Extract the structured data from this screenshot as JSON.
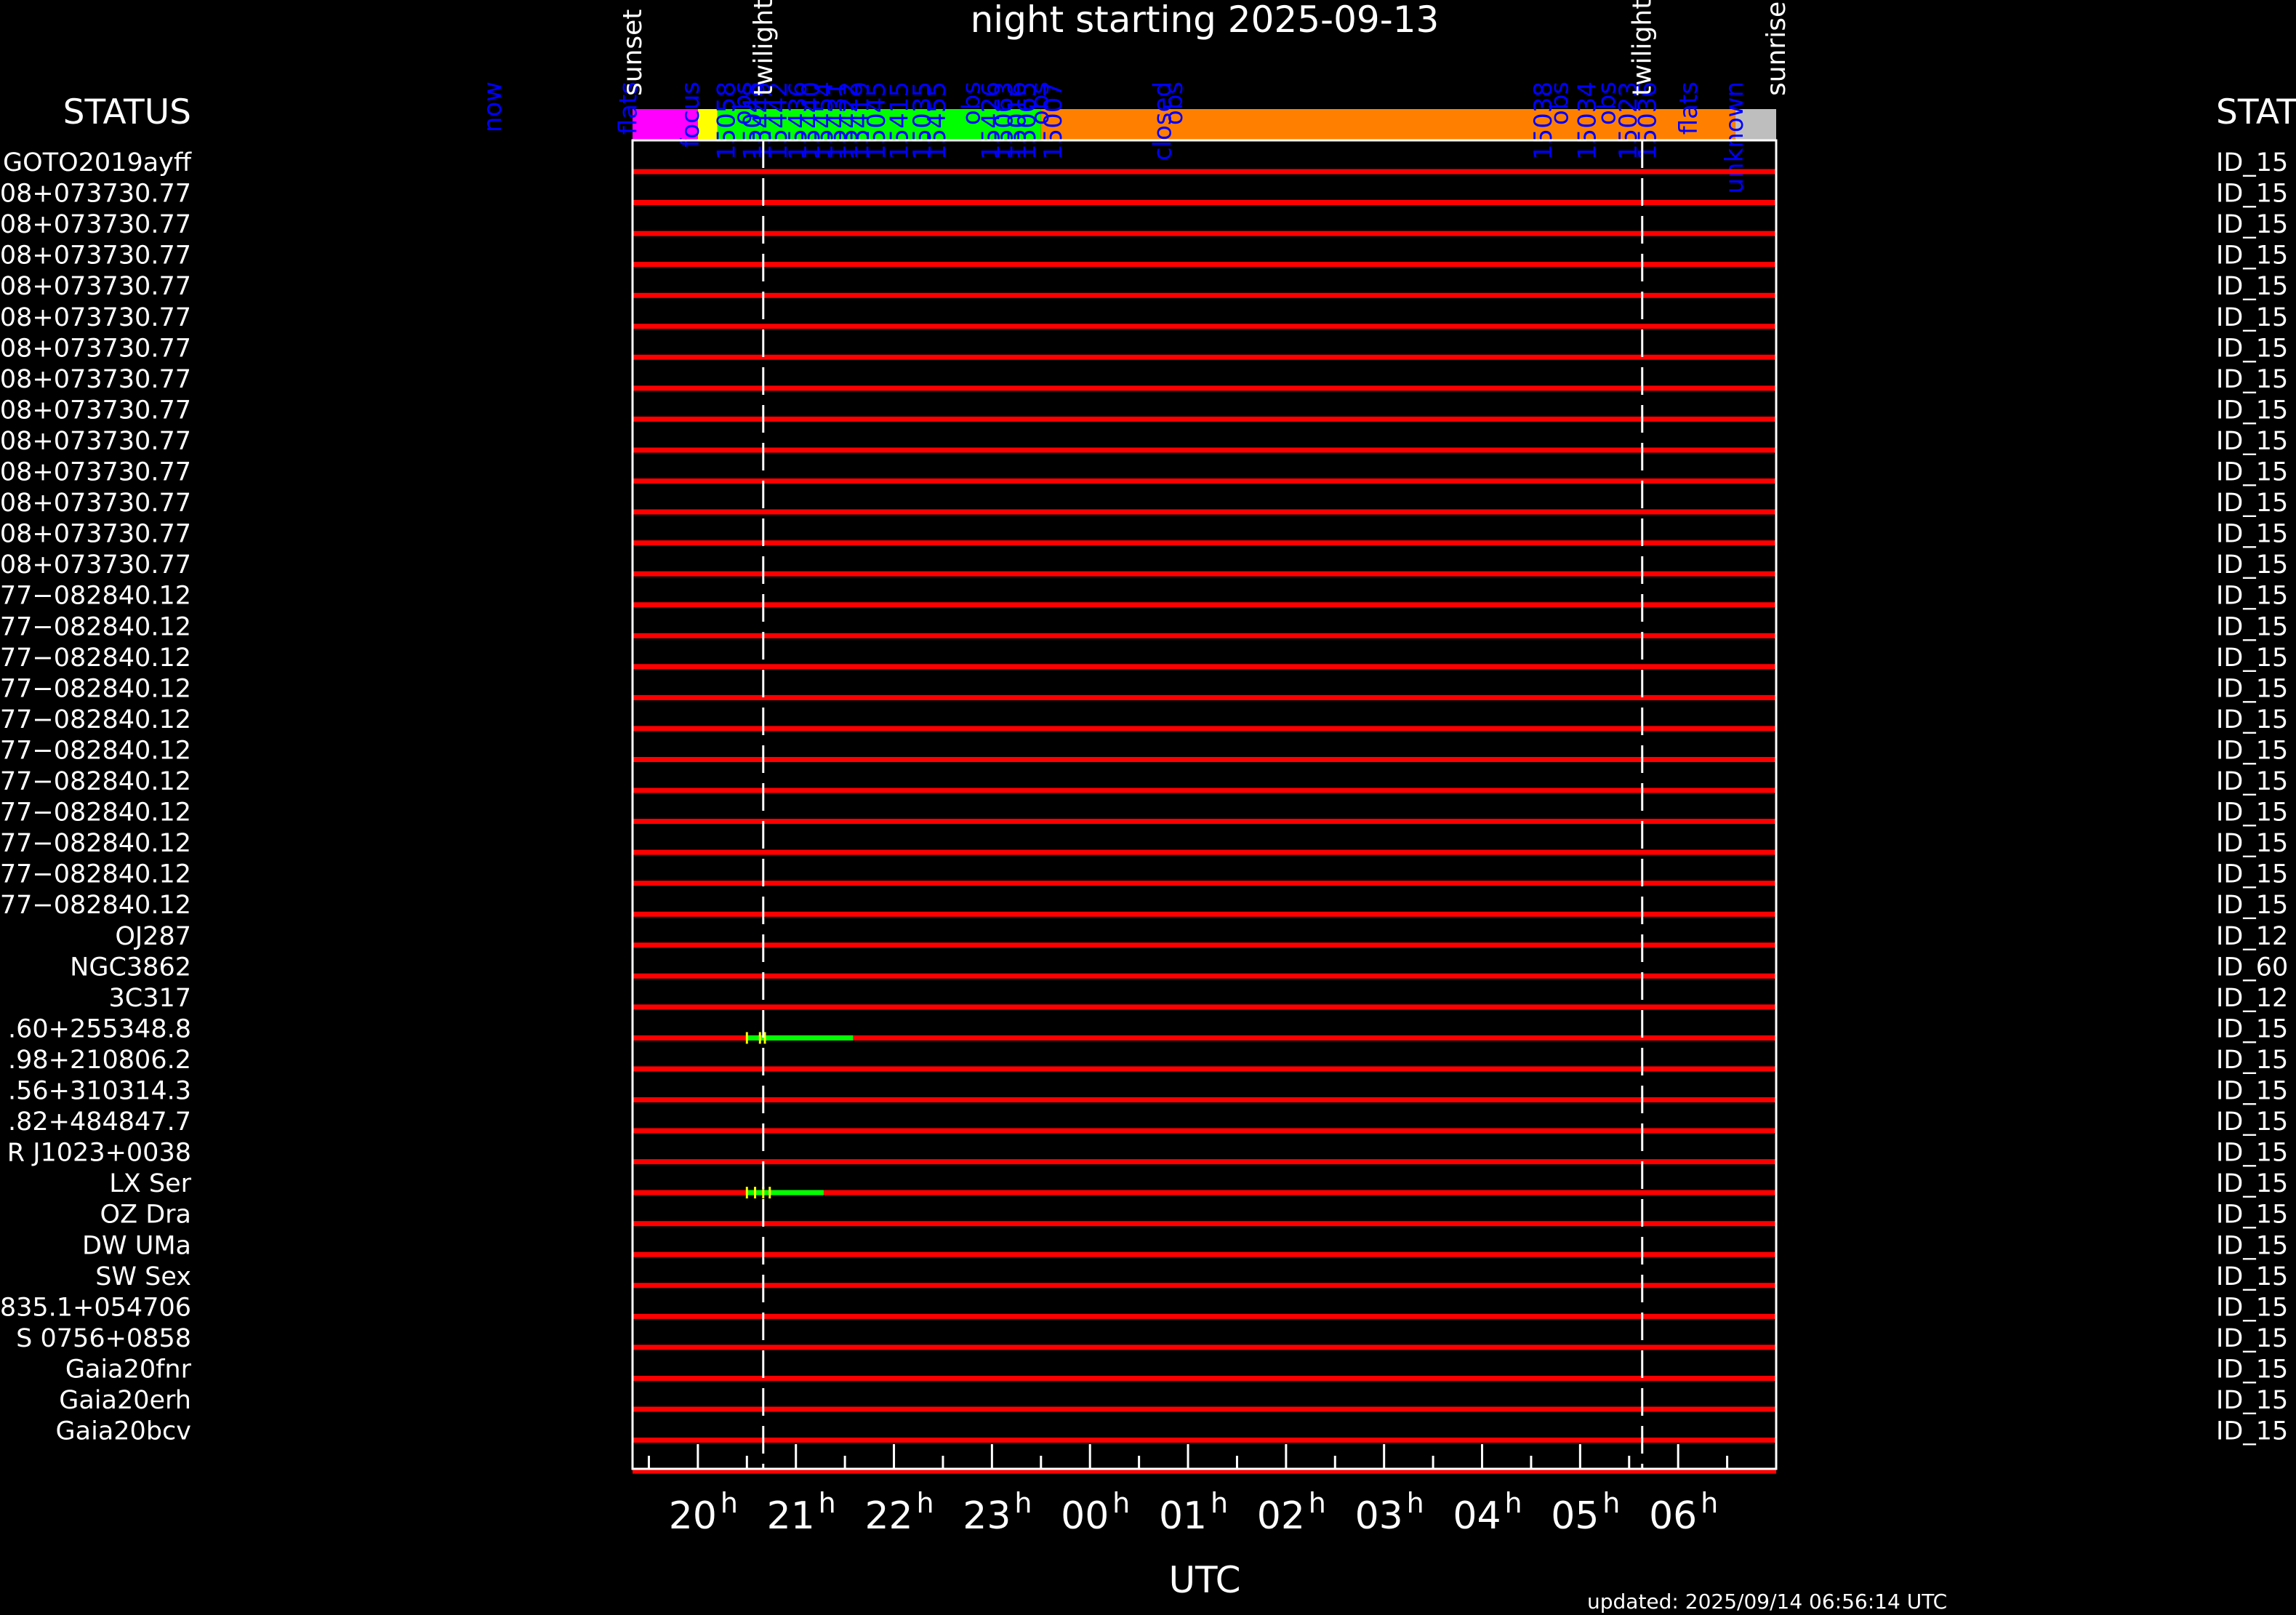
{
  "chart_data": {
    "type": "timeline",
    "title": "night starting 2025-09-13",
    "xlabel": "UTC",
    "updated": "updated: 2025/09/14 06:56:14 UTC",
    "left_header": "STATUS",
    "right_header": "STAT",
    "x_range_hours_utc": [
      "19:20",
      "07:00"
    ],
    "x_ticks": [
      {
        "hour": "20",
        "suffix": "h"
      },
      {
        "hour": "21",
        "suffix": "h"
      },
      {
        "hour": "22",
        "suffix": "h"
      },
      {
        "hour": "23",
        "suffix": "h"
      },
      {
        "hour": "00",
        "suffix": "h"
      },
      {
        "hour": "01",
        "suffix": "h"
      },
      {
        "hour": "02",
        "suffix": "h"
      },
      {
        "hour": "03",
        "suffix": "h"
      },
      {
        "hour": "04",
        "suffix": "h"
      },
      {
        "hour": "05",
        "suffix": "h"
      },
      {
        "hour": "06",
        "suffix": "h"
      }
    ],
    "sky_events": [
      {
        "label": "sunset",
        "time": "19:20"
      },
      {
        "label": "twilight",
        "time": "20:40"
      },
      {
        "label": "twilight",
        "time": "05:38"
      },
      {
        "label": "sunrise",
        "time": "07:00"
      }
    ],
    "dashed_lines": [
      "20:40",
      "05:38"
    ],
    "status_bar": [
      {
        "from": "19:20",
        "to": "20:00",
        "color": "#ff00ff"
      },
      {
        "from": "20:00",
        "to": "20:12",
        "color": "#ffff00"
      },
      {
        "from": "20:12",
        "to": "20:40",
        "color": "#00ff00"
      },
      {
        "from": "20:40",
        "to": "23:30",
        "color": "#00ff00"
      },
      {
        "from": "23:30",
        "to": "06:35",
        "color": "#ff8000"
      },
      {
        "from": "06:35",
        "to": "07:00",
        "color": "#bebebe"
      }
    ],
    "status_labels": [
      {
        "text": "now",
        "time": "17:55"
      },
      {
        "text": "flats",
        "time": "19:18"
      },
      {
        "text": "focus",
        "time": "19:56"
      },
      {
        "text": "15058",
        "time": "20:18"
      },
      {
        "text": "obs",
        "time": "20:28"
      },
      {
        "text": "15048",
        "time": "20:34"
      },
      {
        "text": "15449",
        "time": "20:40"
      },
      {
        "text": "15442",
        "time": "20:50"
      },
      {
        "text": "15436",
        "time": "21:02"
      },
      {
        "text": "15440",
        "time": "21:10"
      },
      {
        "text": "15454",
        "time": "21:18"
      },
      {
        "text": "15431",
        "time": "21:26"
      },
      {
        "text": "15422",
        "time": "21:33"
      },
      {
        "text": "15419",
        "time": "21:40"
      },
      {
        "text": "15045",
        "time": "21:50"
      },
      {
        "text": "15415",
        "time": "22:04"
      },
      {
        "text": "15035",
        "time": "22:18"
      },
      {
        "text": "15455",
        "time": "22:27"
      },
      {
        "text": "obs",
        "time": "22:48"
      },
      {
        "text": "15426",
        "time": "23:00"
      },
      {
        "text": "15063",
        "time": "23:08"
      },
      {
        "text": "15016",
        "time": "23:16"
      },
      {
        "text": "15065",
        "time": "23:22"
      },
      {
        "text": "obs",
        "time": "23:30"
      },
      {
        "text": "15007",
        "time": "23:38"
      },
      {
        "text": "closed",
        "time": "00:45"
      },
      {
        "text": "obs",
        "time": "00:52"
      },
      {
        "text": "15038",
        "time": "04:38"
      },
      {
        "text": "obs",
        "time": "04:48"
      },
      {
        "text": "15034",
        "time": "05:05"
      },
      {
        "text": "obs",
        "time": "05:17"
      },
      {
        "text": "15023",
        "time": "05:30"
      },
      {
        "text": "15036",
        "time": "05:42"
      },
      {
        "text": "flats",
        "time": "06:07"
      },
      {
        "text": "unknown",
        "time": "06:35"
      }
    ],
    "rows": [
      {
        "target": "GOTO2019ayff",
        "status": "ID_15"
      },
      {
        "target": "08+073730.77",
        "status": "ID_15"
      },
      {
        "target": "08+073730.77",
        "status": "ID_15"
      },
      {
        "target": "08+073730.77",
        "status": "ID_15"
      },
      {
        "target": "08+073730.77",
        "status": "ID_15"
      },
      {
        "target": "08+073730.77",
        "status": "ID_15"
      },
      {
        "target": "08+073730.77",
        "status": "ID_15"
      },
      {
        "target": "08+073730.77",
        "status": "ID_15"
      },
      {
        "target": "08+073730.77",
        "status": "ID_15"
      },
      {
        "target": "08+073730.77",
        "status": "ID_15"
      },
      {
        "target": "08+073730.77",
        "status": "ID_15"
      },
      {
        "target": "08+073730.77",
        "status": "ID_15"
      },
      {
        "target": "08+073730.77",
        "status": "ID_15"
      },
      {
        "target": "08+073730.77",
        "status": "ID_15"
      },
      {
        "target": "77−082840.12",
        "status": "ID_15"
      },
      {
        "target": "77−082840.12",
        "status": "ID_15"
      },
      {
        "target": "77−082840.12",
        "status": "ID_15"
      },
      {
        "target": "77−082840.12",
        "status": "ID_15"
      },
      {
        "target": "77−082840.12",
        "status": "ID_15"
      },
      {
        "target": "77−082840.12",
        "status": "ID_15"
      },
      {
        "target": "77−082840.12",
        "status": "ID_15"
      },
      {
        "target": "77−082840.12",
        "status": "ID_15"
      },
      {
        "target": "77−082840.12",
        "status": "ID_15"
      },
      {
        "target": "77−082840.12",
        "status": "ID_15"
      },
      {
        "target": "77−082840.12",
        "status": "ID_15"
      },
      {
        "target": "OJ287",
        "status": "ID_12"
      },
      {
        "target": "NGC3862",
        "status": "ID_60"
      },
      {
        "target": "3C317",
        "status": "ID_12"
      },
      {
        "target": ".60+255348.8",
        "status": "ID_15",
        "observed": [
          {
            "from": "20:30",
            "to": "21:35"
          }
        ],
        "ticks": [
          "20:30",
          "20:38",
          "20:41"
        ]
      },
      {
        "target": ".98+210806.2",
        "status": "ID_15"
      },
      {
        "target": ".56+310314.3",
        "status": "ID_15"
      },
      {
        "target": ".82+484847.7",
        "status": "ID_15"
      },
      {
        "target": "R J1023+0038",
        "status": "ID_15"
      },
      {
        "target": "LX Ser",
        "status": "ID_15",
        "observed": [
          {
            "from": "20:30",
            "to": "21:17"
          }
        ],
        "ticks": [
          "20:30",
          "20:35",
          "20:40",
          "20:44"
        ]
      },
      {
        "target": "OZ Dra",
        "status": "ID_15"
      },
      {
        "target": "DW UMa",
        "status": "ID_15"
      },
      {
        "target": "SW Sex",
        "status": "ID_15"
      },
      {
        "target": "835.1+054706",
        "status": "ID_15"
      },
      {
        "target": "S 0756+0858",
        "status": "ID_15"
      },
      {
        "target": "Gaia20fnr",
        "status": "ID_15"
      },
      {
        "target": "Gaia20erh",
        "status": "ID_15"
      },
      {
        "target": "Gaia20bcv",
        "status": "ID_15"
      }
    ],
    "colors": {
      "background": "#000000",
      "frame": "#ffffff",
      "unobserved": "#ff0000",
      "observed": "#00ff00",
      "tick_mark": "#ffff00",
      "label_blue": "#0000ff"
    }
  }
}
